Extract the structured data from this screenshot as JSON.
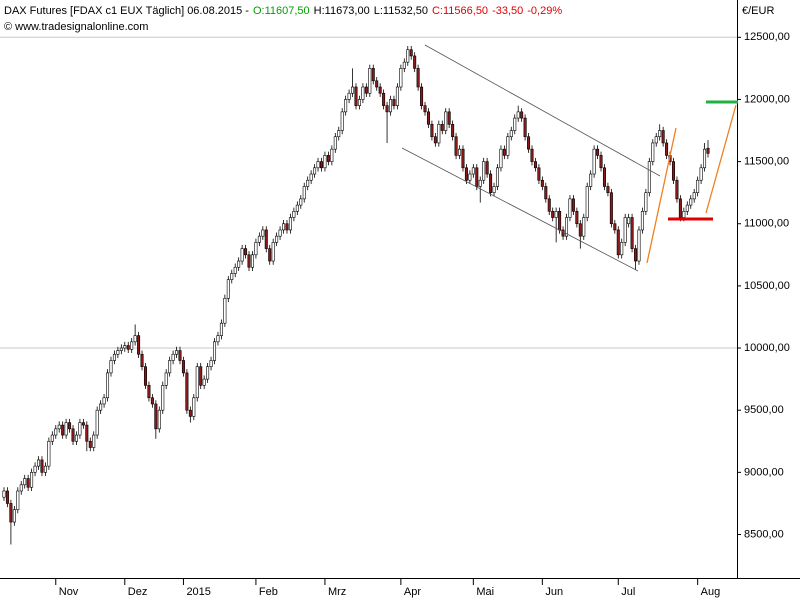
{
  "chart_data": {
    "type": "candlestick",
    "title": "DAX Futures [FDAX c1 EUX  Täglich] 06.08.2015 -",
    "quote": [
      {
        "text": "O:11607,50",
        "color": "#00a000"
      },
      {
        "text": "H:11673,00",
        "color": "#000000"
      },
      {
        "text": "L:11532,50",
        "color": "#000000"
      },
      {
        "text": "C:11566,50",
        "color": "#e00000"
      },
      {
        "text": "-33,50",
        "color": "#e00000"
      },
      {
        "text": "-0,29%",
        "color": "#e00000"
      }
    ],
    "source": "© www.tradesignalonline.com",
    "ylabel": "€/EUR",
    "up_color": "#ffffff",
    "down_color": "#8b1a1a",
    "ylim": [
      8150,
      12800
    ],
    "yticks": [
      {
        "value": 8500,
        "label": "8500,00"
      },
      {
        "value": 9000,
        "label": "9000,00"
      },
      {
        "value": 9500,
        "label": "9500,00"
      },
      {
        "value": 10000,
        "label": "10000,00"
      },
      {
        "value": 10500,
        "label": "10500,00"
      },
      {
        "value": 11000,
        "label": "11000,00"
      },
      {
        "value": 11500,
        "label": "11500,00"
      },
      {
        "value": 12000,
        "label": "12000,00"
      },
      {
        "value": 12500,
        "label": "12500,00"
      }
    ],
    "categories": [
      null,
      null,
      null,
      null,
      null,
      null,
      null,
      null,
      null,
      null,
      null,
      null,
      null,
      null,
      null,
      "Nov",
      null,
      null,
      null,
      null,
      null,
      null,
      null,
      null,
      null,
      null,
      null,
      null,
      null,
      null,
      null,
      null,
      null,
      null,
      null,
      "Dez",
      null,
      null,
      null,
      null,
      null,
      null,
      null,
      null,
      null,
      null,
      null,
      null,
      null,
      null,
      null,
      null,
      "2015",
      null,
      null,
      null,
      null,
      null,
      null,
      null,
      null,
      null,
      null,
      null,
      null,
      null,
      null,
      null,
      null,
      null,
      null,
      null,
      null,
      "Feb",
      null,
      null,
      null,
      null,
      null,
      null,
      null,
      null,
      null,
      null,
      null,
      null,
      null,
      null,
      null,
      null,
      null,
      null,
      null,
      "Mrz",
      null,
      null,
      null,
      null,
      null,
      null,
      null,
      null,
      null,
      null,
      null,
      null,
      null,
      null,
      null,
      null,
      null,
      null,
      null,
      null,
      null,
      "Apr",
      null,
      null,
      null,
      null,
      null,
      null,
      null,
      null,
      null,
      null,
      null,
      null,
      null,
      null,
      null,
      null,
      null,
      null,
      null,
      null,
      "Mai",
      null,
      null,
      null,
      null,
      null,
      null,
      null,
      null,
      null,
      null,
      null,
      null,
      null,
      null,
      null,
      null,
      null,
      null,
      null,
      "Jun",
      null,
      null,
      null,
      null,
      null,
      null,
      null,
      null,
      null,
      null,
      null,
      null,
      null,
      null,
      null,
      null,
      null,
      null,
      null,
      null,
      null,
      "Jul",
      null,
      null,
      null,
      null,
      null,
      null,
      null,
      null,
      null,
      null,
      null,
      null,
      null,
      null,
      null,
      null,
      null,
      null,
      null,
      null,
      null,
      null,
      "Aug",
      null,
      null,
      null
    ],
    "ohlc": [
      [
        8800,
        8880,
        8770,
        8850
      ],
      [
        8850,
        8880,
        8720,
        8750
      ],
      [
        8750,
        8780,
        8420,
        8600
      ],
      [
        8600,
        8730,
        8570,
        8700
      ],
      [
        8700,
        8880,
        8670,
        8850
      ],
      [
        8850,
        8930,
        8820,
        8900
      ],
      [
        8900,
        8980,
        8870,
        8950
      ],
      [
        8950,
        8980,
        8850,
        8880
      ],
      [
        8880,
        9030,
        8850,
        9000
      ],
      [
        9000,
        9080,
        8970,
        9050
      ],
      [
        9050,
        9130,
        9020,
        9100
      ],
      [
        9100,
        9130,
        8970,
        9000
      ],
      [
        9000,
        9080,
        8970,
        9050
      ],
      [
        9050,
        9280,
        9020,
        9250
      ],
      [
        9250,
        9330,
        9220,
        9300
      ],
      [
        9300,
        9380,
        9270,
        9350
      ],
      [
        9350,
        9410,
        9320,
        9380
      ],
      [
        9380,
        9410,
        9270,
        9300
      ],
      [
        9300,
        9430,
        9270,
        9400
      ],
      [
        9400,
        9430,
        9320,
        9350
      ],
      [
        9350,
        9380,
        9220,
        9250
      ],
      [
        9250,
        9330,
        9220,
        9300
      ],
      [
        9300,
        9430,
        9270,
        9400
      ],
      [
        9400,
        9430,
        9350,
        9380
      ],
      [
        9380,
        9410,
        9170,
        9250
      ],
      [
        9250,
        9280,
        9170,
        9200
      ],
      [
        9200,
        9330,
        9170,
        9300
      ],
      [
        9300,
        9530,
        9270,
        9500
      ],
      [
        9500,
        9580,
        9470,
        9550
      ],
      [
        9550,
        9630,
        9520,
        9600
      ],
      [
        9600,
        9830,
        9570,
        9800
      ],
      [
        9800,
        9930,
        9770,
        9900
      ],
      [
        9900,
        9980,
        9870,
        9950
      ],
      [
        9950,
        10010,
        9920,
        9980
      ],
      [
        9980,
        10030,
        9950,
        10000
      ],
      [
        10000,
        10050,
        9970,
        10020
      ],
      [
        10020,
        10050,
        9960,
        9990
      ],
      [
        9990,
        10080,
        9960,
        10050
      ],
      [
        10050,
        10190,
        10020,
        10100
      ],
      [
        10100,
        10130,
        9920,
        9950
      ],
      [
        9950,
        9980,
        9820,
        9850
      ],
      [
        9850,
        9880,
        9670,
        9700
      ],
      [
        9700,
        9730,
        9570,
        9600
      ],
      [
        9600,
        9630,
        9520,
        9550
      ],
      [
        9550,
        9580,
        9270,
        9350
      ],
      [
        9350,
        9530,
        9320,
        9500
      ],
      [
        9500,
        9730,
        9470,
        9700
      ],
      [
        9700,
        9830,
        9670,
        9800
      ],
      [
        9800,
        9930,
        9770,
        9900
      ],
      [
        9900,
        9980,
        9870,
        9950
      ],
      [
        9950,
        10010,
        9920,
        9980
      ],
      [
        9980,
        10010,
        9870,
        9900
      ],
      [
        9900,
        9930,
        9770,
        9800
      ],
      [
        9800,
        9830,
        9470,
        9500
      ],
      [
        9500,
        9530,
        9400,
        9450
      ],
      [
        9450,
        9630,
        9420,
        9600
      ],
      [
        9600,
        9880,
        9570,
        9850
      ],
      [
        9850,
        9880,
        9670,
        9700
      ],
      [
        9700,
        9780,
        9670,
        9750
      ],
      [
        9750,
        9880,
        9720,
        9850
      ],
      [
        9850,
        9930,
        9820,
        9900
      ],
      [
        9900,
        10080,
        9870,
        10050
      ],
      [
        10050,
        10130,
        10020,
        10100
      ],
      [
        10100,
        10230,
        10070,
        10200
      ],
      [
        10200,
        10430,
        10170,
        10400
      ],
      [
        10400,
        10580,
        10370,
        10550
      ],
      [
        10550,
        10630,
        10520,
        10600
      ],
      [
        10600,
        10680,
        10570,
        10650
      ],
      [
        10650,
        10730,
        10620,
        10700
      ],
      [
        10700,
        10830,
        10670,
        10800
      ],
      [
        10800,
        10830,
        10720,
        10750
      ],
      [
        10750,
        10780,
        10620,
        10650
      ],
      [
        10650,
        10780,
        10620,
        10750
      ],
      [
        10750,
        10880,
        10720,
        10850
      ],
      [
        10850,
        10930,
        10820,
        10900
      ],
      [
        10900,
        10980,
        10870,
        10950
      ],
      [
        10950,
        10980,
        10770,
        10800
      ],
      [
        10800,
        10830,
        10670,
        10700
      ],
      [
        10700,
        10880,
        10670,
        10850
      ],
      [
        10850,
        10930,
        10820,
        10900
      ],
      [
        10900,
        10980,
        10870,
        10950
      ],
      [
        10950,
        11030,
        10920,
        11000
      ],
      [
        11000,
        11030,
        10920,
        10950
      ],
      [
        10950,
        11080,
        10920,
        11050
      ],
      [
        11050,
        11130,
        11020,
        11100
      ],
      [
        11100,
        11180,
        11070,
        11150
      ],
      [
        11150,
        11230,
        11120,
        11200
      ],
      [
        11200,
        11330,
        11170,
        11300
      ],
      [
        11300,
        11380,
        11270,
        11350
      ],
      [
        11350,
        11430,
        11320,
        11400
      ],
      [
        11400,
        11480,
        11370,
        11450
      ],
      [
        11450,
        11530,
        11420,
        11500
      ],
      [
        11500,
        11530,
        11420,
        11450
      ],
      [
        11450,
        11580,
        11420,
        11550
      ],
      [
        11550,
        11580,
        11470,
        11500
      ],
      [
        11500,
        11630,
        11470,
        11600
      ],
      [
        11600,
        11730,
        11570,
        11700
      ],
      [
        11700,
        11780,
        11670,
        11750
      ],
      [
        11750,
        11930,
        11720,
        11900
      ],
      [
        11900,
        12030,
        11870,
        12000
      ],
      [
        12000,
        12080,
        11970,
        12050
      ],
      [
        12050,
        12250,
        12020,
        12100
      ],
      [
        12100,
        12130,
        11920,
        11950
      ],
      [
        11950,
        12030,
        11920,
        12000
      ],
      [
        12000,
        12130,
        11970,
        12100
      ],
      [
        12100,
        12130,
        12020,
        12050
      ],
      [
        12050,
        12280,
        12020,
        12250
      ],
      [
        12250,
        12280,
        12120,
        12150
      ],
      [
        12150,
        12180,
        12070,
        12100
      ],
      [
        12100,
        12130,
        12020,
        12050
      ],
      [
        12050,
        12080,
        11920,
        11950
      ],
      [
        11950,
        11980,
        11650,
        11900
      ],
      [
        11900,
        12030,
        11870,
        12000
      ],
      [
        12000,
        12030,
        11920,
        11950
      ],
      [
        11950,
        12130,
        11920,
        12100
      ],
      [
        12100,
        12280,
        12070,
        12250
      ],
      [
        12250,
        12330,
        12220,
        12300
      ],
      [
        12300,
        12430,
        12270,
        12400
      ],
      [
        12400,
        12430,
        12320,
        12350
      ],
      [
        12350,
        12380,
        12220,
        12250
      ],
      [
        12250,
        12280,
        12070,
        12100
      ],
      [
        12100,
        12130,
        11920,
        11950
      ],
      [
        11950,
        11980,
        11870,
        11900
      ],
      [
        11900,
        11930,
        11770,
        11800
      ],
      [
        11800,
        11830,
        11670,
        11700
      ],
      [
        11700,
        11730,
        11620,
        11650
      ],
      [
        11650,
        11830,
        11620,
        11800
      ],
      [
        11800,
        11830,
        11720,
        11750
      ],
      [
        11750,
        11930,
        11720,
        11900
      ],
      [
        11900,
        11930,
        11770,
        11800
      ],
      [
        11800,
        11830,
        11670,
        11700
      ],
      [
        11700,
        11730,
        11520,
        11550
      ],
      [
        11550,
        11630,
        11520,
        11600
      ],
      [
        11600,
        11630,
        11420,
        11450
      ],
      [
        11450,
        11480,
        11320,
        11350
      ],
      [
        11350,
        11430,
        11320,
        11400
      ],
      [
        11400,
        11480,
        11370,
        11450
      ],
      [
        11450,
        11480,
        11270,
        11300
      ],
      [
        11300,
        11380,
        11170,
        11350
      ],
      [
        11350,
        11530,
        11320,
        11500
      ],
      [
        11500,
        11530,
        11370,
        11400
      ],
      [
        11400,
        11430,
        11220,
        11250
      ],
      [
        11250,
        11330,
        11220,
        11300
      ],
      [
        11300,
        11480,
        11270,
        11450
      ],
      [
        11450,
        11630,
        11420,
        11600
      ],
      [
        11600,
        11630,
        11520,
        11550
      ],
      [
        11550,
        11730,
        11520,
        11700
      ],
      [
        11700,
        11780,
        11670,
        11750
      ],
      [
        11750,
        11880,
        11720,
        11850
      ],
      [
        11850,
        11950,
        11820,
        11900
      ],
      [
        11900,
        11930,
        11820,
        11850
      ],
      [
        11850,
        11880,
        11670,
        11700
      ],
      [
        11700,
        11730,
        11570,
        11600
      ],
      [
        11600,
        11630,
        11470,
        11500
      ],
      [
        11500,
        11530,
        11420,
        11450
      ],
      [
        11450,
        11480,
        11320,
        11350
      ],
      [
        11350,
        11380,
        11270,
        11300
      ],
      [
        11300,
        11330,
        11170,
        11200
      ],
      [
        11200,
        11230,
        11070,
        11100
      ],
      [
        11100,
        11130,
        11020,
        11050
      ],
      [
        11050,
        11130,
        10850,
        11100
      ],
      [
        11100,
        11130,
        10920,
        10950
      ],
      [
        10950,
        10980,
        10870,
        10900
      ],
      [
        10900,
        11080,
        10870,
        11050
      ],
      [
        11050,
        11230,
        11020,
        11200
      ],
      [
        11200,
        11230,
        11070,
        11100
      ],
      [
        11100,
        11130,
        10970,
        11000
      ],
      [
        11000,
        11030,
        10800,
        10900
      ],
      [
        10900,
        11080,
        10870,
        11050
      ],
      [
        11050,
        11330,
        11020,
        11300
      ],
      [
        11300,
        11430,
        11270,
        11400
      ],
      [
        11400,
        11630,
        11370,
        11600
      ],
      [
        11600,
        11630,
        11520,
        11550
      ],
      [
        11550,
        11580,
        11420,
        11450
      ],
      [
        11450,
        11480,
        11270,
        11300
      ],
      [
        11300,
        11330,
        11220,
        11250
      ],
      [
        11250,
        11280,
        10970,
        11000
      ],
      [
        11000,
        11030,
        10920,
        10950
      ],
      [
        10950,
        10980,
        10720,
        10750
      ],
      [
        10750,
        10880,
        10720,
        10850
      ],
      [
        10850,
        11080,
        10820,
        11050
      ],
      [
        11000,
        11080,
        10970,
        11050
      ],
      [
        11050,
        11080,
        10770,
        10800
      ],
      [
        10800,
        10830,
        10630,
        10700
      ],
      [
        10700,
        10980,
        10670,
        10950
      ],
      [
        10950,
        11130,
        10920,
        11100
      ],
      [
        11100,
        11280,
        11070,
        11250
      ],
      [
        11250,
        11530,
        11220,
        11500
      ],
      [
        11500,
        11680,
        11470,
        11650
      ],
      [
        11650,
        11730,
        11620,
        11700
      ],
      [
        11700,
        11800,
        11670,
        11750
      ],
      [
        11750,
        11780,
        11620,
        11650
      ],
      [
        11650,
        11680,
        11520,
        11550
      ],
      [
        11550,
        11580,
        11470,
        11500
      ],
      [
        11500,
        11530,
        11320,
        11350
      ],
      [
        11350,
        11380,
        11170,
        11200
      ],
      [
        11200,
        11230,
        11020,
        11050
      ],
      [
        11050,
        11130,
        11020,
        11100
      ],
      [
        11100,
        11180,
        11070,
        11150
      ],
      [
        11150,
        11230,
        11120,
        11200
      ],
      [
        11200,
        11280,
        11170,
        11250
      ],
      [
        11250,
        11380,
        11220,
        11350
      ],
      [
        11350,
        11480,
        11320,
        11450
      ],
      [
        11450,
        11650,
        11420,
        11600
      ],
      [
        11607.5,
        11673,
        11532.5,
        11566.5
      ]
    ]
  }
}
